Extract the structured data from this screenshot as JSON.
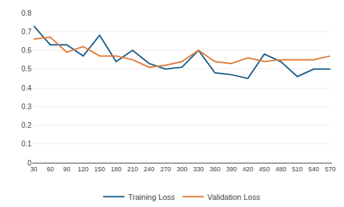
{
  "chart_data": {
    "type": "line",
    "x": [
      30,
      60,
      90,
      120,
      150,
      180,
      210,
      240,
      270,
      300,
      330,
      360,
      390,
      420,
      450,
      480,
      510,
      540,
      570
    ],
    "series": [
      {
        "name": "Training Loss",
        "color": "#1F5F8B",
        "values": [
          0.73,
          0.63,
          0.63,
          0.57,
          0.68,
          0.54,
          0.6,
          0.53,
          0.5,
          0.51,
          0.6,
          0.48,
          0.47,
          0.45,
          0.58,
          0.54,
          0.46,
          0.5,
          0.5
        ]
      },
      {
        "name": "Validation Loss",
        "color": "#E07B39",
        "values": [
          0.66,
          0.67,
          0.59,
          0.62,
          0.57,
          0.57,
          0.55,
          0.51,
          0.52,
          0.54,
          0.6,
          0.54,
          0.53,
          0.56,
          0.54,
          0.55,
          0.55,
          0.55,
          0.57
        ]
      }
    ],
    "xlim": [
      27,
      573
    ],
    "xticks": [
      30,
      60,
      90,
      120,
      150,
      180,
      210,
      240,
      270,
      300,
      330,
      360,
      390,
      420,
      450,
      480,
      510,
      540,
      570
    ],
    "ylim": [
      0,
      0.8
    ],
    "yticks": [
      0,
      0.1,
      0.2,
      0.3,
      0.4,
      0.5,
      0.6,
      0.7,
      0.8
    ],
    "grid": "y",
    "legend": "bottom"
  }
}
